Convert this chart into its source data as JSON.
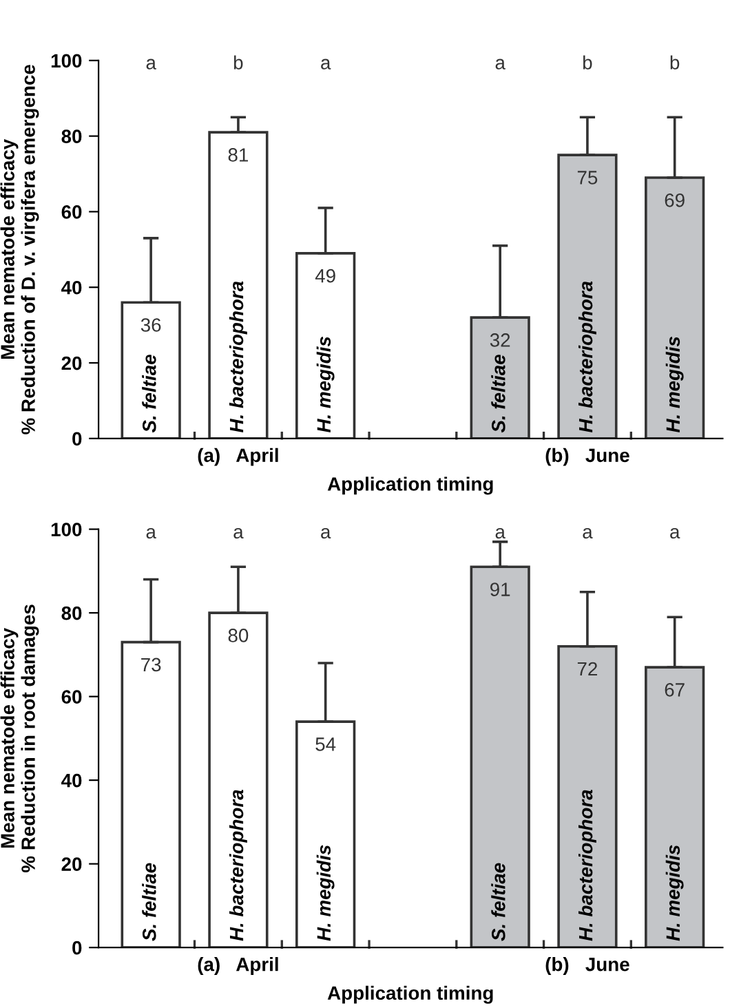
{
  "chart_data": [
    {
      "type": "bar",
      "categories": [
        "S. feltiae",
        "H. bacteriophora",
        "H. megidis",
        null,
        "S. feltiae",
        "H. bacteriophora",
        "H. megidis"
      ],
      "values": [
        36,
        81,
        49,
        null,
        32,
        75,
        69
      ],
      "errors": [
        [
          36,
          53
        ],
        [
          81,
          85
        ],
        [
          49,
          61
        ],
        null,
        [
          32,
          51
        ],
        [
          75,
          85
        ],
        [
          69,
          85
        ]
      ],
      "colors": [
        "#ffffff",
        "#ffffff",
        "#ffffff",
        null,
        "#c3c5c8",
        "#c3c5c8",
        "#c3c5c8"
      ],
      "data_labels": true,
      "ylabel": "Mean nematode efficacy\n% Reduction of D. v. virgifera emergence",
      "xlabel": "Application timing",
      "annotations": [
        "a",
        "b",
        "a",
        "a",
        "b",
        "b",
        "(a)   April",
        "(b)   June"
      ],
      "ylim": [
        0,
        100
      ],
      "yticks": [
        0,
        20,
        40,
        60,
        80,
        100
      ],
      "grid": false,
      "legend": false
    },
    {
      "type": "bar",
      "categories": [
        "S. feltiae",
        "H. bacteriophora",
        "H. megidis",
        null,
        "S. feltiae",
        "H. bacteriophora",
        "H. megidis"
      ],
      "values": [
        73,
        80,
        54,
        null,
        91,
        72,
        67
      ],
      "errors": [
        [
          73,
          88
        ],
        [
          80,
          91
        ],
        [
          54,
          68
        ],
        null,
        [
          91,
          97
        ],
        [
          72,
          85
        ],
        [
          67,
          79
        ]
      ],
      "colors": [
        "#ffffff",
        "#ffffff",
        "#ffffff",
        null,
        "#c3c5c8",
        "#c3c5c8",
        "#c3c5c8"
      ],
      "data_labels": true,
      "ylabel": "Mean nematode efficacy\n% Reduction in root damages",
      "xlabel": "Application timing",
      "annotations": [
        "a",
        "a",
        "a",
        "a",
        "a",
        "a",
        "(a)   April",
        "(b)   June"
      ],
      "ylim": [
        0,
        100
      ],
      "yticks": [
        0,
        20,
        40,
        60,
        80,
        100
      ],
      "grid": false,
      "legend": false
    }
  ]
}
